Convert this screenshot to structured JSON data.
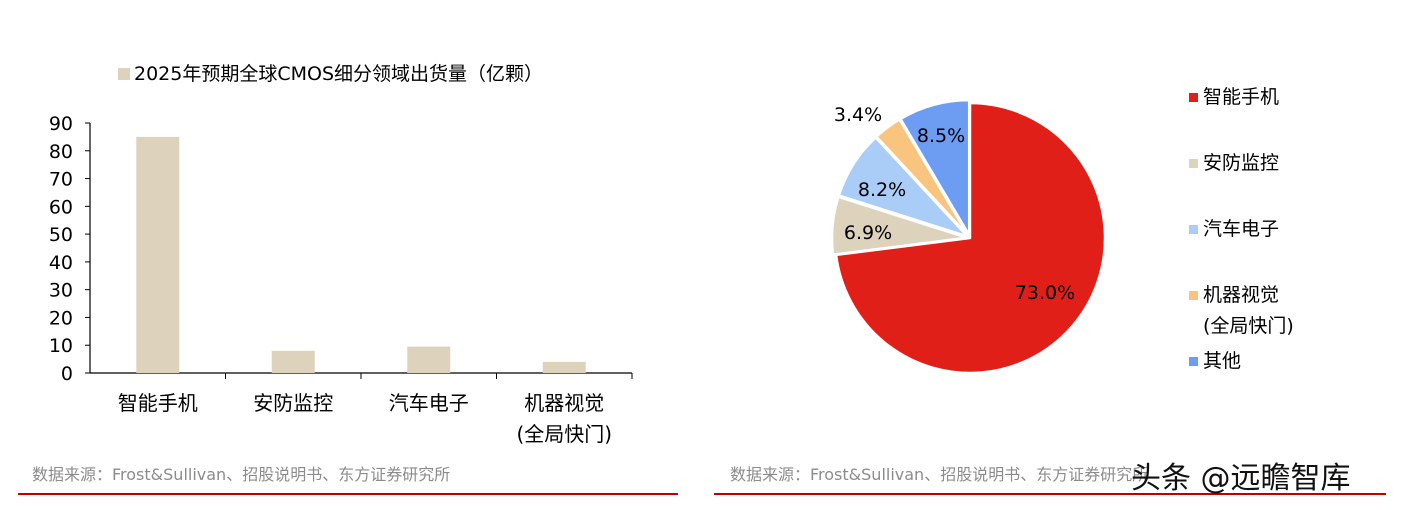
{
  "chart_data": [
    {
      "type": "bar",
      "title": "2025年预期全球CMOS细分领域出货量（亿颗）",
      "legend": [
        "2025年预期全球CMOS细分领域出货量（亿颗）"
      ],
      "categories": [
        "智能手机",
        "安防监控",
        "汽车电子",
        "机器视觉\n(全局快门)"
      ],
      "values": [
        85,
        8,
        9.5,
        4
      ],
      "ylim": [
        0,
        90
      ],
      "yticks": [
        0,
        10,
        20,
        30,
        40,
        50,
        60,
        70,
        80,
        90
      ],
      "grid": false,
      "legend_position": "top-left",
      "bar_color": "#ddd3bd"
    },
    {
      "type": "pie",
      "categories": [
        "智能手机",
        "安防监控",
        "汽车电子",
        "机器视觉\n(全局快门)",
        "其他"
      ],
      "values": [
        73.0,
        6.9,
        8.2,
        3.4,
        8.5
      ],
      "labels": [
        "73.0%",
        "6.9%",
        "8.2%",
        "3.4%",
        "8.5%"
      ],
      "colors": [
        "#e02018",
        "#ddd3bd",
        "#a9cdf6",
        "#f9c47e",
        "#6d9cf3"
      ],
      "legend_position": "right"
    }
  ],
  "source": {
    "left": "数据来源：Frost&Sullivan、招股说明书、东方证券研究所",
    "right": "数据来源：Frost&Sullivan、招股说明书、东方证券研究所"
  },
  "watermark": "头条 @远瞻智库",
  "colors": {
    "rule": "#c00000",
    "axis": "#000000"
  }
}
